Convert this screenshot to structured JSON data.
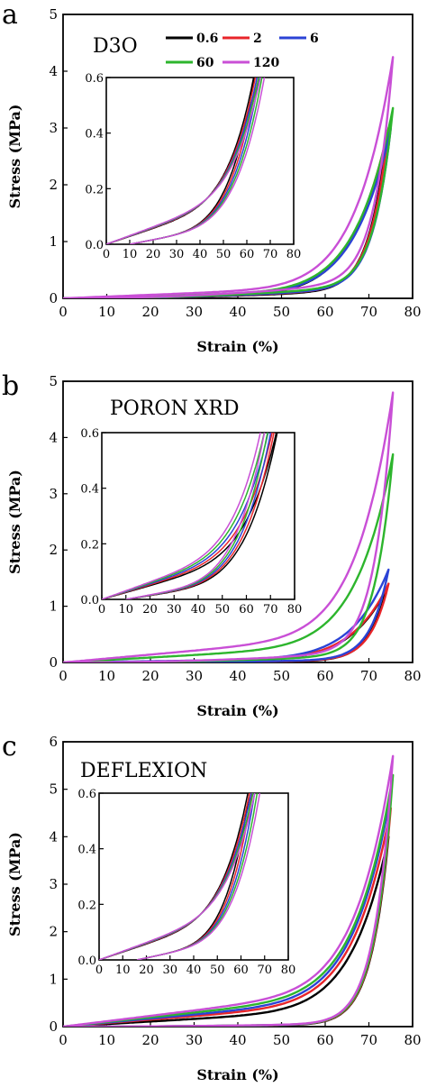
{
  "legend": {
    "title": "",
    "entries": [
      {
        "label": "0.6",
        "color": "#000000"
      },
      {
        "label": "2",
        "color": "#e8252a"
      },
      {
        "label": "6",
        "color": "#2b43d6"
      },
      {
        "label": "60",
        "color": "#2db52d"
      },
      {
        "label": "120",
        "color": "#c94fd6"
      }
    ]
  },
  "chart_data": [
    {
      "type": "line",
      "panel_label": "a",
      "sample": "D3O",
      "xlabel": "Strain (%)",
      "ylabel": "Stress (MPa)",
      "xlim": [
        0,
        80
      ],
      "ylim": [
        0,
        5
      ],
      "xticks": [
        "0",
        "10",
        "20",
        "30",
        "40",
        "50",
        "60",
        "70",
        "80"
      ],
      "yticks": [
        "0",
        "1",
        "2",
        "3",
        "4",
        "5"
      ],
      "series": [
        {
          "name": "0.6",
          "color": "#000000",
          "peak_strain": 74,
          "peak_stress": 2.8,
          "loading_soft": 0.03,
          "unloading_soft": 0.06
        },
        {
          "name": "2",
          "color": "#e8252a",
          "peak_strain": 74.5,
          "peak_stress": 3.0,
          "loading_soft": 0.035,
          "unloading_soft": 0.065
        },
        {
          "name": "6",
          "color": "#2b43d6",
          "peak_strain": 75,
          "peak_stress": 3.0,
          "loading_soft": 0.038,
          "unloading_soft": 0.07
        },
        {
          "name": "60",
          "color": "#2db52d",
          "peak_strain": 75.5,
          "peak_stress": 3.35,
          "loading_soft": 0.045,
          "unloading_soft": 0.075
        },
        {
          "name": "120",
          "color": "#c94fd6",
          "peak_strain": 75.5,
          "peak_stress": 4.25,
          "loading_soft": 0.055,
          "unloading_soft": 0.08
        }
      ],
      "inset": {
        "xlim": [
          0,
          80
        ],
        "ylim": [
          0,
          0.6
        ],
        "xticks": [
          "0",
          "10",
          "20",
          "30",
          "40",
          "50",
          "60",
          "70",
          "80"
        ],
        "yticks": [
          "0.0",
          "0.2",
          "0.4",
          "0.6"
        ]
      }
    },
    {
      "type": "line",
      "panel_label": "b",
      "sample": "PORON XRD",
      "xlabel": "Strain (%)",
      "ylabel": "Stress (MPa)",
      "xlim": [
        0,
        80
      ],
      "ylim": [
        0,
        5
      ],
      "xticks": [
        "0",
        "10",
        "20",
        "30",
        "40",
        "50",
        "60",
        "70",
        "80"
      ],
      "yticks": [
        "0",
        "1",
        "2",
        "3",
        "4",
        "5"
      ],
      "series": [
        {
          "name": "0.6",
          "color": "#000000",
          "peak_strain": 74,
          "peak_stress": 1.3,
          "loading_soft": 0.04,
          "unloading_soft": 0.03
        },
        {
          "name": "2",
          "color": "#e8252a",
          "peak_strain": 74.5,
          "peak_stress": 1.4,
          "loading_soft": 0.045,
          "unloading_soft": 0.035
        },
        {
          "name": "6",
          "color": "#2b43d6",
          "peak_strain": 74.5,
          "peak_stress": 1.65,
          "loading_soft": 0.05,
          "unloading_soft": 0.035
        },
        {
          "name": "60",
          "color": "#2db52d",
          "peak_strain": 75.5,
          "peak_stress": 3.7,
          "loading_soft": 0.09,
          "unloading_soft": 0.04
        },
        {
          "name": "120",
          "color": "#c94fd6",
          "peak_strain": 75.5,
          "peak_stress": 4.8,
          "loading_soft": 0.11,
          "unloading_soft": 0.045
        }
      ],
      "inset": {
        "xlim": [
          0,
          80
        ],
        "ylim": [
          0,
          0.6
        ],
        "xticks": [
          "0",
          "10",
          "20",
          "30",
          "40",
          "50",
          "60",
          "70",
          "80"
        ],
        "yticks": [
          "0.0",
          "0.2",
          "0.4",
          "0.6"
        ]
      }
    },
    {
      "type": "line",
      "panel_label": "c",
      "sample": "DEFLEXION",
      "xlabel": "Strain (%)",
      "ylabel": "Stress (MPa)",
      "xlim": [
        0,
        80
      ],
      "ylim": [
        0,
        6
      ],
      "xticks": [
        "0",
        "10",
        "20",
        "30",
        "40",
        "50",
        "60",
        "70",
        "80"
      ],
      "yticks": [
        "0",
        "1",
        "2",
        "3",
        "4",
        "5",
        "6"
      ],
      "series": [
        {
          "name": "0.6",
          "color": "#000000",
          "peak_strain": 74.5,
          "peak_stress": 4.0,
          "loading_soft": 0.1,
          "unloading_soft": 0.015
        },
        {
          "name": "2",
          "color": "#e8252a",
          "peak_strain": 75,
          "peak_stress": 4.6,
          "loading_soft": 0.12,
          "unloading_soft": 0.015
        },
        {
          "name": "6",
          "color": "#2b43d6",
          "peak_strain": 75,
          "peak_stress": 4.9,
          "loading_soft": 0.13,
          "unloading_soft": 0.015
        },
        {
          "name": "60",
          "color": "#2db52d",
          "peak_strain": 75.5,
          "peak_stress": 5.3,
          "loading_soft": 0.14,
          "unloading_soft": 0.015
        },
        {
          "name": "120",
          "color": "#c94fd6",
          "peak_strain": 75.5,
          "peak_stress": 5.7,
          "loading_soft": 0.15,
          "unloading_soft": 0.015
        }
      ],
      "inset": {
        "xlim": [
          0,
          80
        ],
        "ylim": [
          0,
          0.6
        ],
        "xticks": [
          "0",
          "10",
          "20",
          "30",
          "40",
          "50",
          "60",
          "70",
          "80"
        ],
        "yticks": [
          "0.0",
          "0.2",
          "0.4",
          "0.6"
        ]
      }
    }
  ]
}
